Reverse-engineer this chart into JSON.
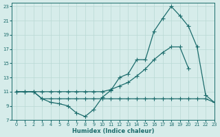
{
  "xlabel": "Humidex (Indice chaleur)",
  "bg_color": "#d6ecea",
  "grid_color": "#b8d8d4",
  "line_color": "#1a6b6b",
  "xlim": [
    -0.5,
    23
  ],
  "ylim": [
    7,
    23.5
  ],
  "xticks": [
    0,
    1,
    2,
    3,
    4,
    5,
    6,
    7,
    8,
    9,
    10,
    11,
    12,
    13,
    14,
    15,
    16,
    17,
    18,
    19,
    20,
    21,
    22,
    23
  ],
  "yticks": [
    7,
    9,
    11,
    13,
    15,
    17,
    19,
    21,
    23
  ],
  "line1_x": [
    0,
    1,
    2,
    3,
    4,
    5,
    6,
    7,
    8,
    9,
    10,
    11,
    12,
    13,
    14,
    15,
    16,
    17,
    18,
    19,
    20,
    21,
    22,
    23
  ],
  "line1_y": [
    11.0,
    11.0,
    11.0,
    10.0,
    9.5,
    9.3,
    9.0,
    8.0,
    7.5,
    8.5,
    10.2,
    11.2,
    13.0,
    13.5,
    15.5,
    15.5,
    19.5,
    21.3,
    23.0,
    21.7,
    20.2,
    17.3,
    10.5,
    9.5
  ],
  "line2_x": [
    0,
    1,
    2,
    3,
    4,
    5,
    6,
    7,
    8,
    9,
    10,
    11,
    12,
    13,
    14,
    15,
    16,
    17,
    18,
    19,
    20,
    21,
    22,
    23
  ],
  "line2_y": [
    11.0,
    11.0,
    11.0,
    11.0,
    11.0,
    11.0,
    11.0,
    11.0,
    11.0,
    11.0,
    11.0,
    11.3,
    11.8,
    12.3,
    13.2,
    14.2,
    15.5,
    16.5,
    17.3,
    17.3,
    14.3,
    null,
    null,
    null
  ],
  "line3_x": [
    0,
    1,
    2,
    3,
    4,
    5,
    6,
    7,
    8,
    9,
    10,
    11,
    12,
    13,
    14,
    15,
    16,
    17,
    18,
    19,
    20,
    21,
    22,
    23
  ],
  "line3_y": [
    11.0,
    11.0,
    11.0,
    10.0,
    10.0,
    10.0,
    10.0,
    10.0,
    10.0,
    10.0,
    10.0,
    10.0,
    10.0,
    10.0,
    10.0,
    10.0,
    10.0,
    10.0,
    10.0,
    10.0,
    10.0,
    10.0,
    10.0,
    9.5
  ]
}
